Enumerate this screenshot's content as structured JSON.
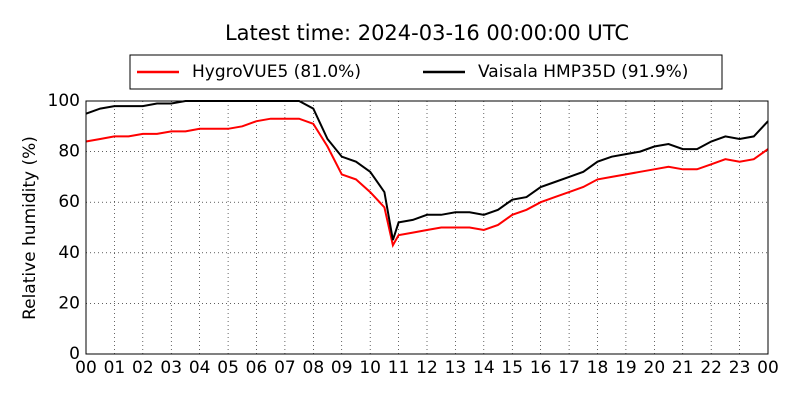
{
  "chart_data": {
    "type": "line",
    "title": "Latest time: 2024-03-16 00:00:00 UTC",
    "ylabel": "Relative humidity (%)",
    "x": [
      0,
      0.5,
      1,
      1.5,
      2,
      2.5,
      3,
      3.5,
      4,
      4.5,
      5,
      5.5,
      6,
      6.5,
      7,
      7.5,
      8,
      8.5,
      9,
      9.5,
      10,
      10.5,
      10.8,
      11,
      11.5,
      12,
      12.5,
      13,
      13.5,
      14,
      14.5,
      15,
      15.5,
      16,
      16.5,
      17,
      17.5,
      18,
      18.5,
      19,
      19.5,
      20,
      20.5,
      21,
      21.5,
      22,
      22.5,
      23,
      23.5,
      24
    ],
    "series": [
      {
        "name": "HygroVUE5 (81.0%)",
        "color": "#ff0000",
        "values": [
          84,
          85,
          86,
          86,
          87,
          87,
          88,
          88,
          89,
          89,
          89,
          90,
          92,
          93,
          93,
          93,
          91,
          82,
          71,
          69,
          64,
          58,
          43,
          47,
          48,
          49,
          50,
          50,
          50,
          49,
          51,
          55,
          57,
          60,
          62,
          64,
          66,
          69,
          70,
          71,
          72,
          73,
          74,
          73,
          73,
          75,
          77,
          76,
          77,
          81
        ]
      },
      {
        "name": "Vaisala HMP35D (91.9%)",
        "color": "#000000",
        "values": [
          95,
          97,
          98,
          98,
          98,
          99,
          99,
          100,
          100,
          100,
          100,
          100,
          100,
          100,
          100,
          100,
          97,
          85,
          78,
          76,
          72,
          64,
          45,
          52,
          53,
          55,
          55,
          56,
          56,
          55,
          57,
          61,
          62,
          66,
          68,
          70,
          72,
          76,
          78,
          79,
          80,
          82,
          83,
          81,
          81,
          84,
          86,
          85,
          86,
          92
        ]
      }
    ],
    "xlim": [
      0,
      24
    ],
    "xticks": [
      {
        "value": 0,
        "label": "00"
      },
      {
        "value": 1,
        "label": "01"
      },
      {
        "value": 2,
        "label": "02"
      },
      {
        "value": 3,
        "label": "03"
      },
      {
        "value": 4,
        "label": "04"
      },
      {
        "value": 5,
        "label": "05"
      },
      {
        "value": 6,
        "label": "06"
      },
      {
        "value": 7,
        "label": "07"
      },
      {
        "value": 8,
        "label": "08"
      },
      {
        "value": 9,
        "label": "09"
      },
      {
        "value": 10,
        "label": "10"
      },
      {
        "value": 11,
        "label": "11"
      },
      {
        "value": 12,
        "label": "12"
      },
      {
        "value": 13,
        "label": "13"
      },
      {
        "value": 14,
        "label": "14"
      },
      {
        "value": 15,
        "label": "15"
      },
      {
        "value": 16,
        "label": "16"
      },
      {
        "value": 17,
        "label": "17"
      },
      {
        "value": 18,
        "label": "18"
      },
      {
        "value": 19,
        "label": "19"
      },
      {
        "value": 20,
        "label": "20"
      },
      {
        "value": 21,
        "label": "21"
      },
      {
        "value": 22,
        "label": "22"
      },
      {
        "value": 23,
        "label": "23"
      },
      {
        "value": 24,
        "label": "00"
      }
    ],
    "ylim": [
      0,
      100
    ],
    "yticks": [
      0,
      20,
      40,
      60,
      80,
      100
    ],
    "grid": true
  }
}
